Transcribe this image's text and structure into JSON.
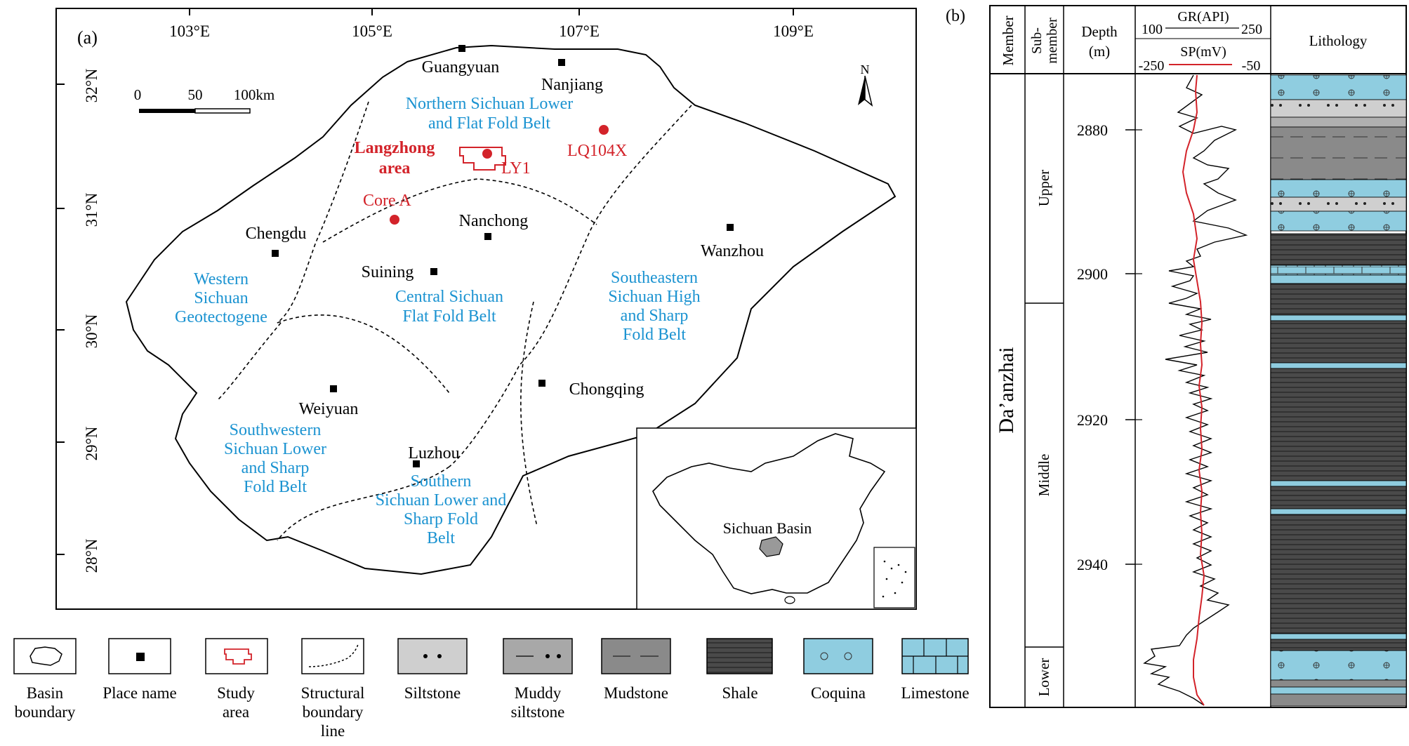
{
  "panel_a": {
    "label": "(a)",
    "lon_ticks": [
      "103°E",
      "105°E",
      "107°E",
      "109°E"
    ],
    "lat_ticks": [
      "32°N",
      "31°N",
      "30°N",
      "29°N",
      "28°N"
    ],
    "scale_bar": {
      "labels": [
        "0",
        "50",
        "100km"
      ]
    },
    "north_arrow": "N",
    "places": [
      "Guangyuan",
      "Nanjiang",
      "Chengdu",
      "Nanchong",
      "Wanzhou",
      "Suining",
      "Weiyuan",
      "Chongqing",
      "Luzhou"
    ],
    "regions": [
      [
        "Northern Sichuan Lower",
        "and Flat Fold Belt"
      ],
      [
        "Western",
        "Sichuan",
        "Geotectogene"
      ],
      [
        "Central Sichuan",
        "Flat Fold Belt"
      ],
      [
        "Southeastern",
        "Sichuan High",
        "and Sharp",
        "Fold Belt"
      ],
      [
        "Southwestern",
        "Sichuan Lower",
        "and Sharp",
        "Fold Belt"
      ],
      [
        "Southern",
        "Sichuan Lower and",
        "Sharp Fold",
        "Belt"
      ]
    ],
    "study_area": [
      "Langzhong",
      "area"
    ],
    "wells": [
      "LY1",
      "LQ104X",
      "Core A"
    ],
    "inset_label": "Sichuan Basin",
    "colors": {
      "region_text": "#1b93d1",
      "study_text": "#d3232a",
      "well_dot": "#d3232a"
    }
  },
  "legend": [
    {
      "icon": "basin-boundary-icon",
      "label": [
        "Basin",
        "boundary"
      ]
    },
    {
      "icon": "place-name-icon",
      "label": [
        "Place name"
      ]
    },
    {
      "icon": "study-area-icon",
      "label": [
        "Study",
        "area"
      ]
    },
    {
      "icon": "structural-boundary-line-icon",
      "label": [
        "Structural",
        "boundary",
        "line"
      ]
    },
    {
      "icon": "siltstone-icon",
      "label": [
        "Siltstone"
      ]
    },
    {
      "icon": "muddy-siltstone-icon",
      "label": [
        "Muddy",
        "siltstone"
      ]
    },
    {
      "icon": "mudstone-icon",
      "label": [
        "Mudstone"
      ]
    },
    {
      "icon": "shale-icon",
      "label": [
        "Shale"
      ]
    },
    {
      "icon": "coquina-icon",
      "label": [
        "Coquina"
      ]
    },
    {
      "icon": "limestone-icon",
      "label": [
        "Limestone"
      ]
    }
  ],
  "panel_b": {
    "label": "(b)",
    "headers": {
      "member": "Member",
      "submember": [
        "Sub-",
        "member"
      ],
      "depth": [
        "Depth",
        "(m)"
      ],
      "gr": "GR(API)",
      "gr_min": "100",
      "gr_max": "250",
      "sp": "SP(mV)",
      "sp_min": "-250",
      "sp_max": "-50",
      "lithology": "Lithology"
    },
    "member": "Da’anzhai",
    "submembers": [
      "Upper",
      "Middle",
      "Lower"
    ],
    "depth_ticks": [
      "2880",
      "2900",
      "2920",
      "2940"
    ],
    "colors": {
      "sp_curve": "#d3232a",
      "coquina": "#8fcde0",
      "siltstone": "#cfcfcf",
      "mudstone": "#8a8a8a",
      "shale": "#4a4a4a"
    }
  }
}
